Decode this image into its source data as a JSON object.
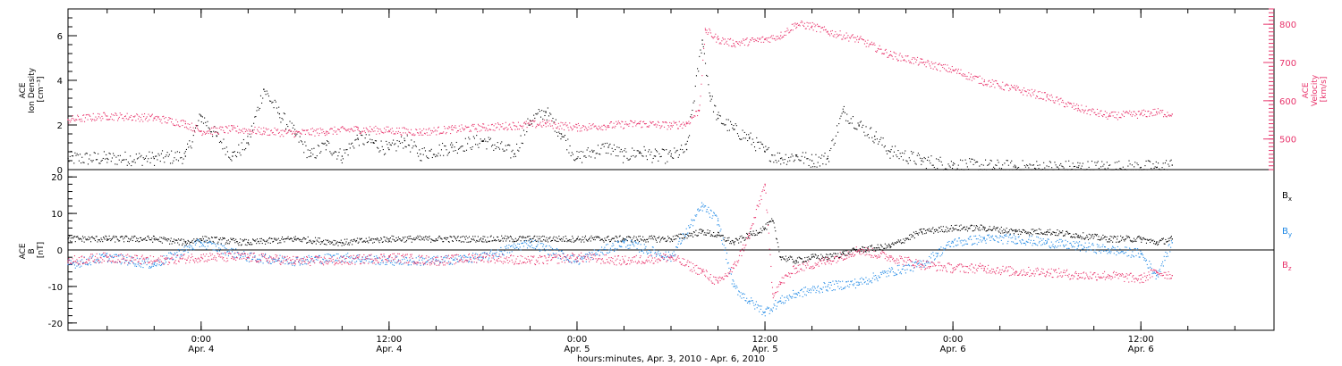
{
  "colors": {
    "black": "#000000",
    "blue": "#1e88e5",
    "pink": "#e8336b"
  },
  "xaxis": {
    "label": "hours:minutes, Apr.  3, 2010 - Apr.  6, 2010",
    "ticks": [
      {
        "t": 0,
        "time": "0:00",
        "date": "Apr. 4"
      },
      {
        "t": 12,
        "time": "12:00",
        "date": "Apr. 4"
      },
      {
        "t": 24,
        "time": "0:00",
        "date": "Apr. 5"
      },
      {
        "t": 36,
        "time": "12:00",
        "date": "Apr. 5"
      },
      {
        "t": 48,
        "time": "0:00",
        "date": "Apr. 6"
      },
      {
        "t": 60,
        "time": "12:00",
        "date": "Apr. 6"
      }
    ]
  },
  "panel_top": {
    "ylabel_left": [
      "ACE",
      "Ion Density",
      "[cm⁻³]"
    ],
    "ylabel_right": [
      "ACE",
      "Velocity",
      "[km/s]"
    ],
    "left_ticks": [
      "0",
      "2",
      "4",
      "6"
    ],
    "right_ticks": [
      "500",
      "600",
      "700",
      "800"
    ]
  },
  "panel_bottom": {
    "ylabel_left": [
      "ACE",
      "B",
      "[nT]"
    ],
    "left_ticks": [
      "-20",
      "-10",
      "0",
      "10",
      "20"
    ],
    "legend": [
      {
        "base": "B",
        "sub": "x",
        "color": "#000000"
      },
      {
        "base": "B",
        "sub": "y",
        "color": "#1e88e5"
      },
      {
        "base": "B",
        "sub": "z",
        "color": "#e8336b"
      }
    ]
  },
  "chart_data": [
    {
      "type": "scatter",
      "title": "",
      "x_units": "hours from Apr. 4, 2010 00:00",
      "xlim": [
        -8.5,
        68.5
      ],
      "series": [
        {
          "axis": "left",
          "ylim": [
            0,
            7.2
          ],
          "color": "#000000",
          "points": [
            [
              -8.5,
              0.5
            ],
            [
              -6,
              0.5
            ],
            [
              -3,
              0.5
            ],
            [
              -1,
              0.6
            ],
            [
              0,
              2.4
            ],
            [
              1,
              1.5
            ],
            [
              2,
              0.6
            ],
            [
              3,
              1.2
            ],
            [
              4,
              3.6
            ],
            [
              5,
              2.5
            ],
            [
              6,
              1.6
            ],
            [
              7,
              0.6
            ],
            [
              8,
              1.1
            ],
            [
              9,
              0.6
            ],
            [
              10,
              1.4
            ],
            [
              11,
              1.2
            ],
            [
              12,
              0.9
            ],
            [
              13,
              1.3
            ],
            [
              14,
              0.7
            ],
            [
              16,
              1.0
            ],
            [
              18,
              1.3
            ],
            [
              20,
              0.7
            ],
            [
              21,
              2.2
            ],
            [
              22,
              2.6
            ],
            [
              23,
              1.6
            ],
            [
              24,
              0.5
            ],
            [
              25,
              0.8
            ],
            [
              26,
              1.0
            ],
            [
              27,
              0.6
            ],
            [
              28,
              0.8
            ],
            [
              29,
              0.6
            ],
            [
              30,
              0.6
            ],
            [
              31,
              0.9
            ],
            [
              32,
              5.8
            ],
            [
              32.5,
              3.3
            ],
            [
              33,
              2.3
            ],
            [
              34,
              1.8
            ],
            [
              35,
              1.4
            ],
            [
              36,
              0.8
            ],
            [
              37,
              0.5
            ],
            [
              38,
              0.6
            ],
            [
              39,
              0.4
            ],
            [
              40,
              0.5
            ],
            [
              41,
              2.6
            ],
            [
              42,
              2.0
            ],
            [
              43,
              1.5
            ],
            [
              44,
              0.8
            ],
            [
              46,
              0.4
            ],
            [
              48,
              0.2
            ],
            [
              52,
              0.1
            ],
            [
              56,
              0.1
            ],
            [
              60,
              0.1
            ],
            [
              61,
              0.1
            ],
            [
              62,
              0.2
            ]
          ]
        },
        {
          "axis": "right",
          "ylim": [
            420,
            840
          ],
          "color": "#e8336b",
          "points": [
            [
              -8.5,
              550
            ],
            [
              -6,
              560
            ],
            [
              -3,
              555
            ],
            [
              -1,
              540
            ],
            [
              0,
              520
            ],
            [
              2,
              525
            ],
            [
              4,
              520
            ],
            [
              6,
              515
            ],
            [
              8,
              520
            ],
            [
              10,
              525
            ],
            [
              12,
              522
            ],
            [
              14,
              518
            ],
            [
              16,
              525
            ],
            [
              18,
              530
            ],
            [
              20,
              535
            ],
            [
              22,
              540
            ],
            [
              24,
              530
            ],
            [
              26,
              535
            ],
            [
              28,
              540
            ],
            [
              30,
              535
            ],
            [
              31,
              540
            ],
            [
              31.8,
              575
            ],
            [
              32.2,
              785
            ],
            [
              33,
              760
            ],
            [
              34,
              750
            ],
            [
              36,
              760
            ],
            [
              37,
              770
            ],
            [
              38,
              800
            ],
            [
              39,
              795
            ],
            [
              40,
              780
            ],
            [
              42,
              760
            ],
            [
              44,
              720
            ],
            [
              46,
              700
            ],
            [
              48,
              680
            ],
            [
              50,
              650
            ],
            [
              52,
              630
            ],
            [
              54,
              610
            ],
            [
              56,
              580
            ],
            [
              58,
              560
            ],
            [
              60,
              565
            ],
            [
              61,
              570
            ],
            [
              62,
              565
            ]
          ]
        }
      ]
    },
    {
      "type": "scatter",
      "title": "",
      "x_units": "hours from Apr. 4, 2010 00:00",
      "xlim": [
        -8.5,
        68.5
      ],
      "ylim": [
        -22,
        22
      ],
      "series": [
        {
          "name": "Bx",
          "color": "#000000",
          "points": [
            [
              -8.5,
              3
            ],
            [
              -6,
              3
            ],
            [
              -3,
              3
            ],
            [
              -1,
              2
            ],
            [
              0,
              3
            ],
            [
              3,
              2
            ],
            [
              6,
              3
            ],
            [
              9,
              2
            ],
            [
              12,
              3
            ],
            [
              15,
              3
            ],
            [
              18,
              3
            ],
            [
              21,
              3
            ],
            [
              24,
              3
            ],
            [
              27,
              3
            ],
            [
              30,
              3
            ],
            [
              32,
              5
            ],
            [
              33,
              4
            ],
            [
              34,
              2
            ],
            [
              35,
              4
            ],
            [
              36,
              6
            ],
            [
              36.5,
              8
            ],
            [
              37,
              -2
            ],
            [
              38,
              -3
            ],
            [
              39,
              -2
            ],
            [
              40,
              -2
            ],
            [
              41,
              -1
            ],
            [
              42,
              0
            ],
            [
              44,
              1
            ],
            [
              46,
              5
            ],
            [
              48,
              6
            ],
            [
              50,
              6
            ],
            [
              52,
              5
            ],
            [
              54,
              5
            ],
            [
              56,
              4
            ],
            [
              58,
              3
            ],
            [
              60,
              3
            ],
            [
              61,
              2
            ],
            [
              62,
              3
            ]
          ]
        },
        {
          "name": "By",
          "color": "#1e88e5",
          "points": [
            [
              -8.5,
              -4
            ],
            [
              -6,
              -2
            ],
            [
              -3,
              -4
            ],
            [
              0,
              2
            ],
            [
              3,
              -2
            ],
            [
              6,
              -3
            ],
            [
              9,
              -2
            ],
            [
              12,
              -3
            ],
            [
              15,
              -3
            ],
            [
              18,
              -2
            ],
            [
              21,
              2
            ],
            [
              24,
              -3
            ],
            [
              27,
              2
            ],
            [
              30,
              -2
            ],
            [
              32,
              12
            ],
            [
              33,
              8
            ],
            [
              34,
              -10
            ],
            [
              35,
              -14
            ],
            [
              36,
              -17
            ],
            [
              37,
              -14
            ],
            [
              38,
              -12
            ],
            [
              40,
              -10
            ],
            [
              42,
              -9
            ],
            [
              44,
              -6
            ],
            [
              46,
              -4
            ],
            [
              47,
              -1
            ],
            [
              48,
              2
            ],
            [
              50,
              3
            ],
            [
              52,
              3
            ],
            [
              54,
              2
            ],
            [
              56,
              1
            ],
            [
              58,
              0
            ],
            [
              60,
              -1
            ],
            [
              61,
              -7
            ],
            [
              62,
              2
            ]
          ]
        },
        {
          "name": "Bz",
          "color": "#e8336b",
          "points": [
            [
              -8.5,
              -3
            ],
            [
              -6,
              -2
            ],
            [
              -3,
              -3
            ],
            [
              0,
              -2
            ],
            [
              3,
              -2
            ],
            [
              6,
              -3
            ],
            [
              9,
              -3
            ],
            [
              12,
              -2
            ],
            [
              15,
              -3
            ],
            [
              18,
              -2
            ],
            [
              21,
              -3
            ],
            [
              24,
              -2
            ],
            [
              27,
              -3
            ],
            [
              30,
              -2
            ],
            [
              32,
              -6
            ],
            [
              33,
              -9
            ],
            [
              34,
              -5
            ],
            [
              35,
              4
            ],
            [
              36,
              18
            ],
            [
              36.5,
              -12
            ],
            [
              37,
              -9
            ],
            [
              38,
              -5
            ],
            [
              40,
              -3
            ],
            [
              42,
              0
            ],
            [
              44,
              -2
            ],
            [
              46,
              -4
            ],
            [
              48,
              -5
            ],
            [
              50,
              -5
            ],
            [
              52,
              -6
            ],
            [
              54,
              -6
            ],
            [
              56,
              -7
            ],
            [
              58,
              -7
            ],
            [
              60,
              -8
            ],
            [
              61,
              -6
            ],
            [
              62,
              -7
            ]
          ]
        }
      ]
    }
  ]
}
